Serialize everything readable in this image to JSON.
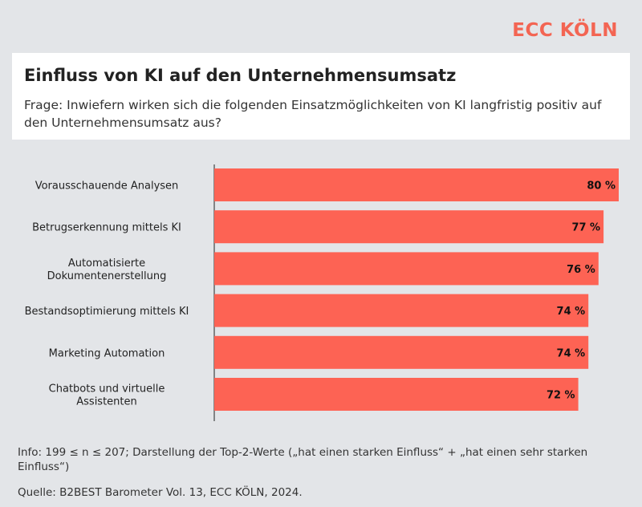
{
  "brand": "ECC KÖLN",
  "header": {
    "title": "Einfluss von KI auf den Unternehmensumsatz",
    "subtitle": "Frage: Inwiefern wirken sich die folgenden Einsatzmöglichkeiten von KI langfristig positiv auf den Unternehmensumsatz aus?"
  },
  "footer": {
    "info": "Info: 199 ≤ n ≤ 207; Darstellung der Top-2-Werte („hat einen starken Einfluss“ + „hat einen sehr starken Einfluss“)",
    "source": "Quelle: B2BEST Barometer Vol. 13, ECC KÖLN, 2024."
  },
  "colors": {
    "bar": "#fd6354",
    "brand": "#f36553"
  },
  "chart_data": {
    "type": "bar",
    "orientation": "horizontal",
    "categories": [
      [
        "Vorausschauende Analysen"
      ],
      [
        "Betrugserkennung mittels KI"
      ],
      [
        "Automatisierte",
        "Dokumentenerstellung"
      ],
      [
        "Bestandsoptimierung mittels KI"
      ],
      [
        "Marketing Automation"
      ],
      [
        "Chatbots und virtuelle",
        "Assistenten"
      ]
    ],
    "values": [
      80,
      77,
      76,
      74,
      74,
      72
    ],
    "value_labels": [
      "80 %",
      "77 %",
      "76 %",
      "74 %",
      "74 %",
      "72 %"
    ],
    "unit": "%",
    "xlim": [
      0,
      80
    ],
    "grid": false,
    "legend": "none"
  }
}
